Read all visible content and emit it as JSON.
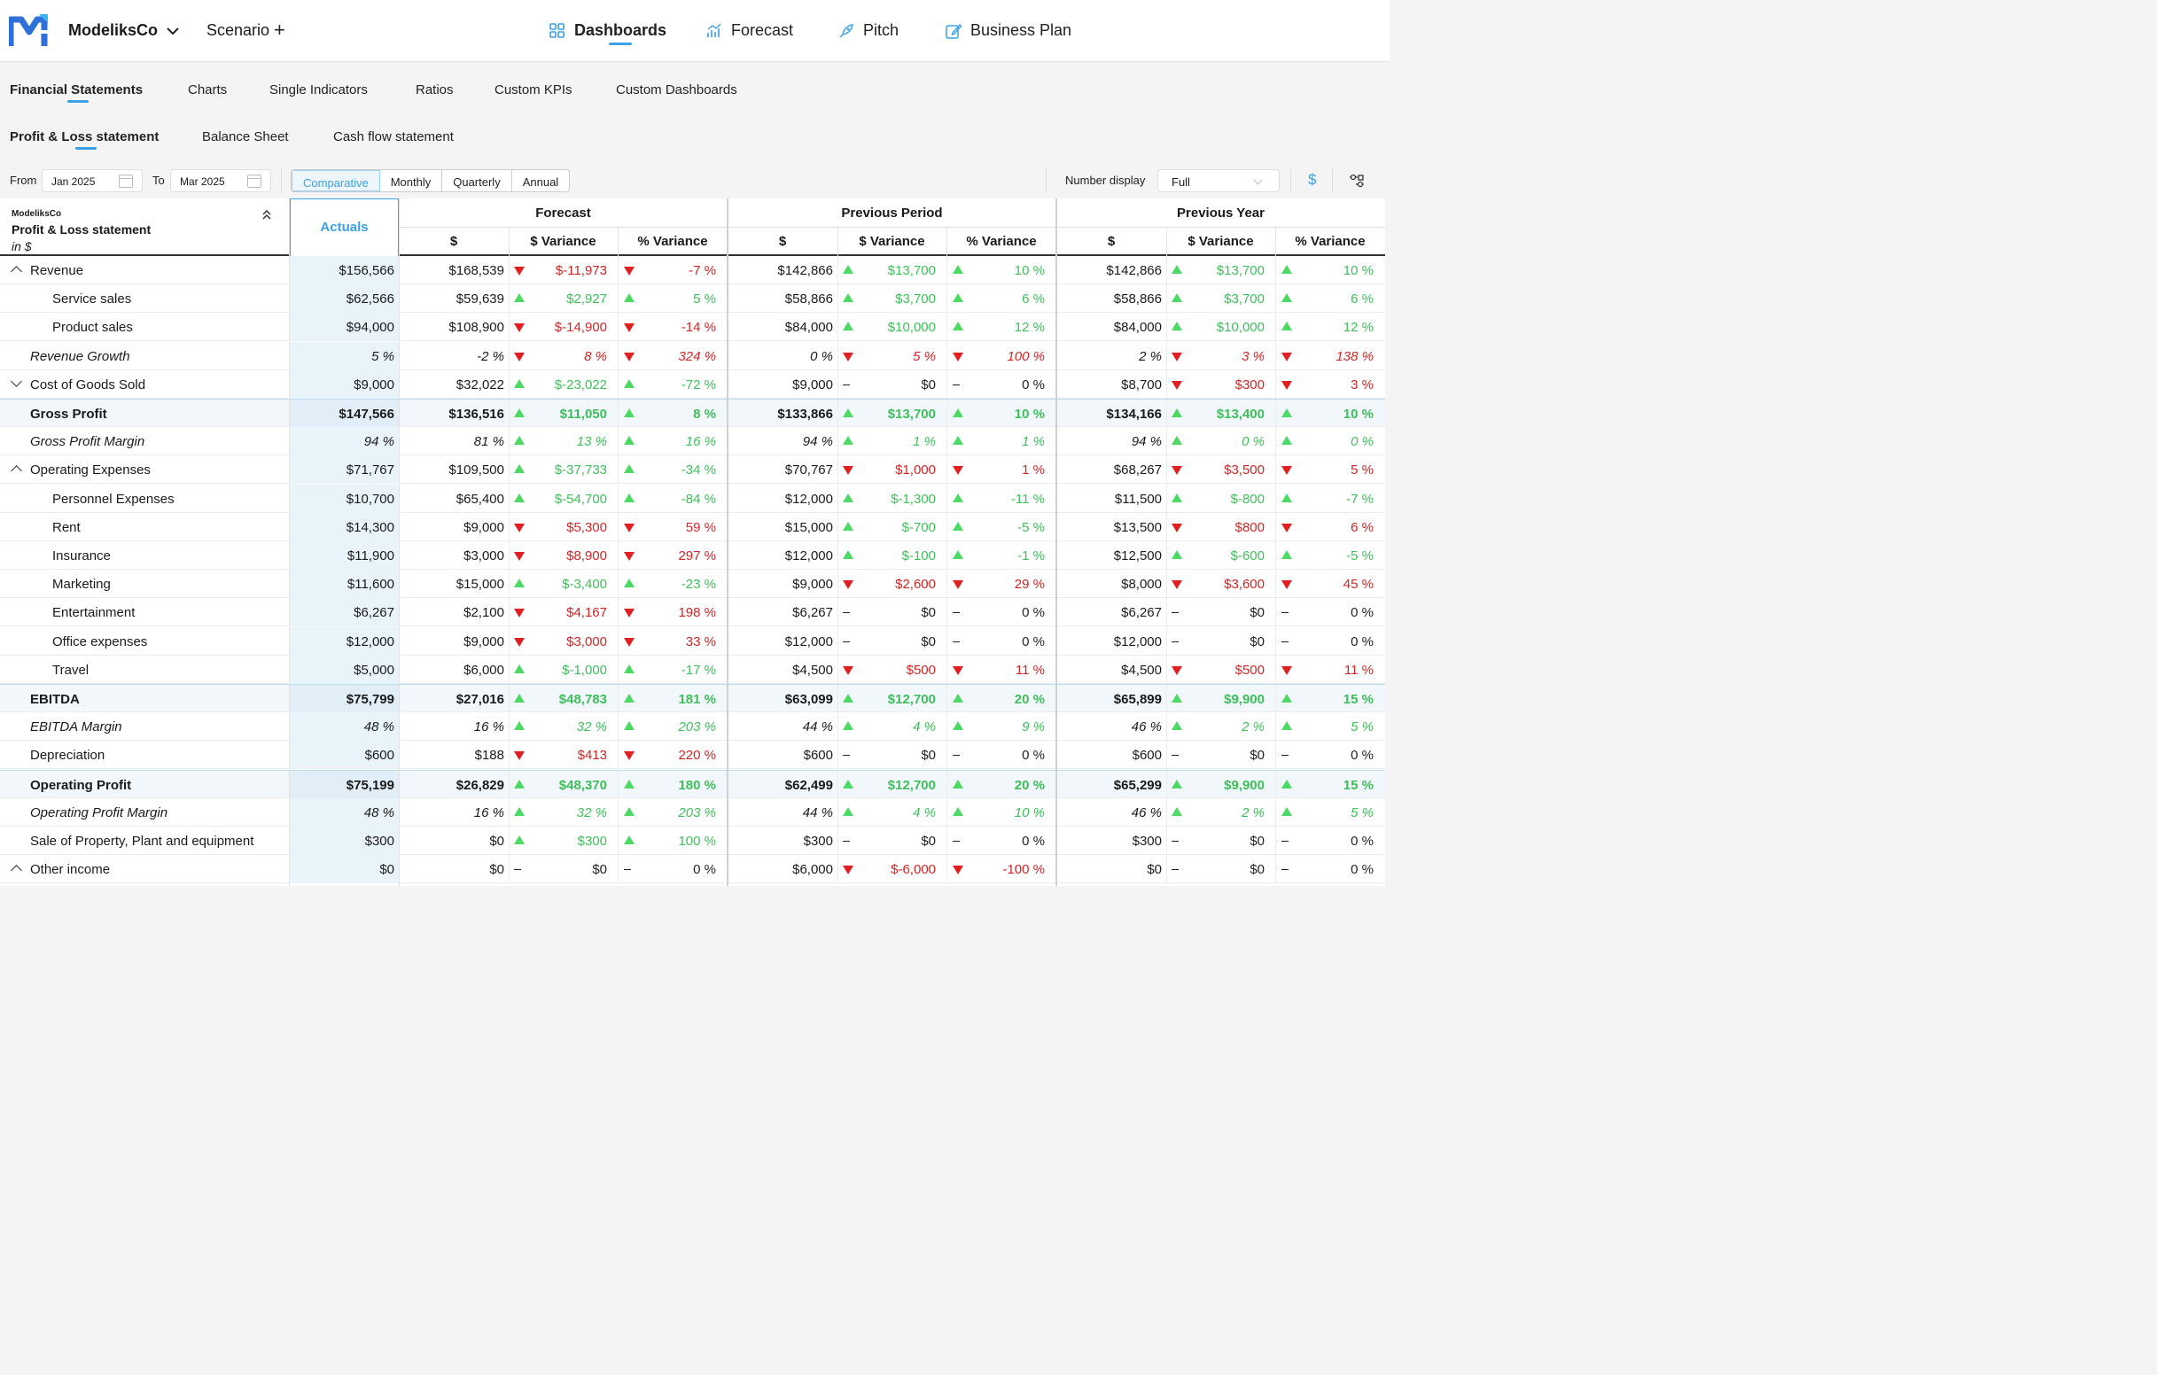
{
  "header": {
    "company": "ModeliksCo",
    "scenario": "Scenario",
    "nav": [
      {
        "label": "Dashboards",
        "icon": "dashboard-icon"
      },
      {
        "label": "Forecast",
        "icon": "forecast-chart-icon"
      },
      {
        "label": "Pitch",
        "icon": "rocket-icon"
      },
      {
        "label": "Business Plan",
        "icon": "edit-document-icon"
      }
    ]
  },
  "tabs": {
    "primary": [
      "Financial Statements",
      "Charts",
      "Single Indicators",
      "Ratios",
      "Custom KPIs",
      "Custom Dashboards"
    ],
    "secondary": [
      "Profit & Loss statement",
      "Balance Sheet",
      "Cash flow statement"
    ]
  },
  "filters": {
    "from_label": "From",
    "from_value": "Jan 2025",
    "to_label": "To",
    "to_value": "Mar 2025",
    "periods": [
      "Comparative",
      "Monthly",
      "Quarterly",
      "Annual"
    ],
    "number_display_label": "Number display",
    "number_display_value": "Full",
    "currency_symbol": "$"
  },
  "table": {
    "company": "ModeliksCo",
    "title": "Profit & Loss statement",
    "unit": "in $",
    "actuals_header": "Actuals",
    "groups": [
      "Forecast",
      "Previous Period",
      "Previous Year"
    ],
    "subheaders": [
      "$",
      "$ Variance",
      "% Variance"
    ],
    "rows": [
      {
        "label": "Revenue",
        "style": "group-open",
        "actual": "$156,566",
        "fc": [
          "$168,539",
          "down",
          "$-11,973",
          "down",
          "-7 %"
        ],
        "pp": [
          "$142,866",
          "up",
          "$13,700",
          "up",
          "10 %"
        ],
        "py": [
          "$142,866",
          "up",
          "$13,700",
          "up",
          "10 %"
        ]
      },
      {
        "label": "Service sales",
        "style": "child",
        "actual": "$62,566",
        "fc": [
          "$59,639",
          "up",
          "$2,927",
          "up",
          "5 %"
        ],
        "pp": [
          "$58,866",
          "up",
          "$3,700",
          "up",
          "6 %"
        ],
        "py": [
          "$58,866",
          "up",
          "$3,700",
          "up",
          "6 %"
        ]
      },
      {
        "label": "Product sales",
        "style": "child",
        "actual": "$94,000",
        "fc": [
          "$108,900",
          "down",
          "$-14,900",
          "down",
          "-14 %"
        ],
        "pp": [
          "$84,000",
          "up",
          "$10,000",
          "up",
          "12 %"
        ],
        "py": [
          "$84,000",
          "up",
          "$10,000",
          "up",
          "12 %"
        ]
      },
      {
        "label": "Revenue Growth",
        "style": "italic",
        "actual": "5 %",
        "fc": [
          "-2 %",
          "down",
          "8 %",
          "down",
          "324 %"
        ],
        "pp": [
          "0 %",
          "down",
          "5 %",
          "down",
          "100 %"
        ],
        "py": [
          "2 %",
          "down",
          "3 %",
          "down",
          "138 %"
        ]
      },
      {
        "label": "Cost of Goods Sold",
        "style": "group-closed",
        "actual": "$9,000",
        "fc": [
          "$32,022",
          "up",
          "$-23,022",
          "up",
          "-72 %"
        ],
        "pp": [
          "$9,000",
          "dash",
          "$0",
          "dash",
          "0 %"
        ],
        "py": [
          "$8,700",
          "down",
          "$300",
          "down",
          "3 %"
        ]
      },
      {
        "label": "Gross Profit",
        "style": "total",
        "actual": "$147,566",
        "fc": [
          "$136,516",
          "up",
          "$11,050",
          "up",
          "8 %"
        ],
        "pp": [
          "$133,866",
          "up",
          "$13,700",
          "up",
          "10 %"
        ],
        "py": [
          "$134,166",
          "up",
          "$13,400",
          "up",
          "10 %"
        ]
      },
      {
        "label": "Gross Profit Margin",
        "style": "italic",
        "actual": "94 %",
        "fc": [
          "81 %",
          "up",
          "13 %",
          "up",
          "16 %"
        ],
        "pp": [
          "94 %",
          "up",
          "1 %",
          "up",
          "1 %"
        ],
        "py": [
          "94 %",
          "up",
          "0 %",
          "up",
          "0 %"
        ]
      },
      {
        "label": "Operating Expenses",
        "style": "group-open",
        "actual": "$71,767",
        "fc": [
          "$109,500",
          "up",
          "$-37,733",
          "up",
          "-34 %"
        ],
        "pp": [
          "$70,767",
          "down",
          "$1,000",
          "down",
          "1 %"
        ],
        "py": [
          "$68,267",
          "down",
          "$3,500",
          "down",
          "5 %"
        ]
      },
      {
        "label": "Personnel Expenses",
        "style": "child",
        "actual": "$10,700",
        "fc": [
          "$65,400",
          "up",
          "$-54,700",
          "up",
          "-84 %"
        ],
        "pp": [
          "$12,000",
          "up",
          "$-1,300",
          "up",
          "-11 %"
        ],
        "py": [
          "$11,500",
          "up",
          "$-800",
          "up",
          "-7 %"
        ]
      },
      {
        "label": "Rent",
        "style": "child",
        "actual": "$14,300",
        "fc": [
          "$9,000",
          "down",
          "$5,300",
          "down",
          "59 %"
        ],
        "pp": [
          "$15,000",
          "up",
          "$-700",
          "up",
          "-5 %"
        ],
        "py": [
          "$13,500",
          "down",
          "$800",
          "down",
          "6 %"
        ]
      },
      {
        "label": "Insurance",
        "style": "child",
        "actual": "$11,900",
        "fc": [
          "$3,000",
          "down",
          "$8,900",
          "down",
          "297 %"
        ],
        "pp": [
          "$12,000",
          "up",
          "$-100",
          "up",
          "-1 %"
        ],
        "py": [
          "$12,500",
          "up",
          "$-600",
          "up",
          "-5 %"
        ]
      },
      {
        "label": "Marketing",
        "style": "child",
        "actual": "$11,600",
        "fc": [
          "$15,000",
          "up",
          "$-3,400",
          "up",
          "-23 %"
        ],
        "pp": [
          "$9,000",
          "down",
          "$2,600",
          "down",
          "29 %"
        ],
        "py": [
          "$8,000",
          "down",
          "$3,600",
          "down",
          "45 %"
        ]
      },
      {
        "label": "Entertainment",
        "style": "child",
        "actual": "$6,267",
        "fc": [
          "$2,100",
          "down",
          "$4,167",
          "down",
          "198 %"
        ],
        "pp": [
          "$6,267",
          "dash",
          "$0",
          "dash",
          "0 %"
        ],
        "py": [
          "$6,267",
          "dash",
          "$0",
          "dash",
          "0 %"
        ]
      },
      {
        "label": "Office expenses",
        "style": "child",
        "actual": "$12,000",
        "fc": [
          "$9,000",
          "down",
          "$3,000",
          "down",
          "33 %"
        ],
        "pp": [
          "$12,000",
          "dash",
          "$0",
          "dash",
          "0 %"
        ],
        "py": [
          "$12,000",
          "dash",
          "$0",
          "dash",
          "0 %"
        ]
      },
      {
        "label": "Travel",
        "style": "child",
        "actual": "$5,000",
        "fc": [
          "$6,000",
          "up",
          "$-1,000",
          "up",
          "-17 %"
        ],
        "pp": [
          "$4,500",
          "down",
          "$500",
          "down",
          "11 %"
        ],
        "py": [
          "$4,500",
          "down",
          "$500",
          "down",
          "11 %"
        ]
      },
      {
        "label": "EBITDA",
        "style": "total",
        "actual": "$75,799",
        "fc": [
          "$27,016",
          "up",
          "$48,783",
          "up",
          "181 %"
        ],
        "pp": [
          "$63,099",
          "up",
          "$12,700",
          "up",
          "20 %"
        ],
        "py": [
          "$65,899",
          "up",
          "$9,900",
          "up",
          "15 %"
        ]
      },
      {
        "label": "EBITDA Margin",
        "style": "italic",
        "actual": "48 %",
        "fc": [
          "16 %",
          "up",
          "32 %",
          "up",
          "203 %"
        ],
        "pp": [
          "44 %",
          "up",
          "4 %",
          "up",
          "9 %"
        ],
        "py": [
          "46 %",
          "up",
          "2 %",
          "up",
          "5 %"
        ]
      },
      {
        "label": "Depreciation",
        "style": "plain",
        "actual": "$600",
        "fc": [
          "$188",
          "down",
          "$413",
          "down",
          "220 %"
        ],
        "pp": [
          "$600",
          "dash",
          "$0",
          "dash",
          "0 %"
        ],
        "py": [
          "$600",
          "dash",
          "$0",
          "dash",
          "0 %"
        ]
      },
      {
        "label": "Operating Profit",
        "style": "total",
        "actual": "$75,199",
        "fc": [
          "$26,829",
          "up",
          "$48,370",
          "up",
          "180 %"
        ],
        "pp": [
          "$62,499",
          "up",
          "$12,700",
          "up",
          "20 %"
        ],
        "py": [
          "$65,299",
          "up",
          "$9,900",
          "up",
          "15 %"
        ]
      },
      {
        "label": "Operating Profit Margin",
        "style": "italic",
        "actual": "48 %",
        "fc": [
          "16 %",
          "up",
          "32 %",
          "up",
          "203 %"
        ],
        "pp": [
          "44 %",
          "up",
          "4 %",
          "up",
          "10 %"
        ],
        "py": [
          "46 %",
          "up",
          "2 %",
          "up",
          "5 %"
        ]
      },
      {
        "label": "Sale of Property, Plant and equipment",
        "style": "plain",
        "actual": "$300",
        "fc": [
          "$0",
          "up",
          "$300",
          "up",
          "100 %"
        ],
        "pp": [
          "$300",
          "dash",
          "$0",
          "dash",
          "0 %"
        ],
        "py": [
          "$300",
          "dash",
          "$0",
          "dash",
          "0 %"
        ]
      },
      {
        "label": "Other income",
        "style": "group-open",
        "actual": "$0",
        "fc": [
          "$0",
          "dash",
          "$0",
          "dash",
          "0 %"
        ],
        "pp": [
          "$6,000",
          "down",
          "$-6,000",
          "down",
          "-100 %"
        ],
        "py": [
          "$0",
          "dash",
          "$0",
          "dash",
          "0 %"
        ]
      }
    ]
  },
  "colors": {
    "accent": "#3aa0e8",
    "positive": "#3dbf59",
    "negative": "#d42424",
    "actuals_bg": "#e9f3fa"
  }
}
